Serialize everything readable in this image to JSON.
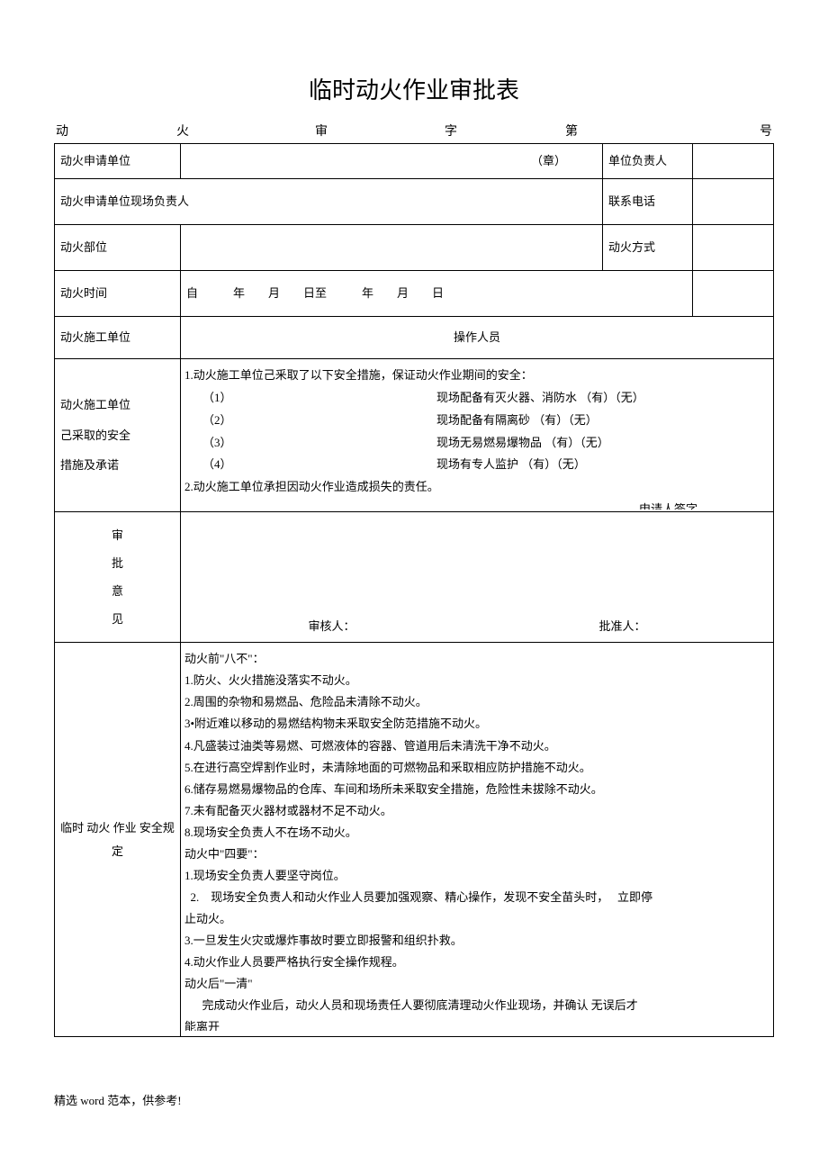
{
  "title": "临时动火作业审批表",
  "header": {
    "c1": "动",
    "c2": "火",
    "c3": "审",
    "c4": "字",
    "c5": "第",
    "c6": "号"
  },
  "rows": {
    "r1_label": "动火申请单位",
    "r1_stamp": "（章）",
    "r1_col3": "单位负责人",
    "r2_label": "动火申请单位现场负责人",
    "r2_col3": "联系电话",
    "r3_label": "动火部位",
    "r3_col3": "动火方式",
    "r4_label": "动火时间",
    "r4_content": "自            年        月        日至            年        月        日",
    "r5_label": "动火施工单位",
    "r5_col3": "操作人员",
    "r6_label_l1": "动火施工单位",
    "r6_label_l2": "己采取的安全",
    "r6_label_l3": "措施及承诺"
  },
  "measures": {
    "head": "1.动火施工单位己釆取了以下安全措施，保证动火作业期间的安全：",
    "m1_l": "（1）",
    "m1_r": "现场配备有灭火器、消防水  （有）（无）",
    "m2_l": "（2）",
    "m2_r": "现场配备有隔离砂  （有）（无）",
    "m3_l": "（3）",
    "m3_r": "现场无易燃易爆物品  （有）（无）",
    "m4_l": "（4）",
    "m4_r": "现场有专人监护 （有）（无）",
    "foot": "2.动火施工单位承担因动火作业造成损失的责任。",
    "sign": "申请人签字"
  },
  "approval": {
    "label_c1": "审",
    "label_c2": "批",
    "label_c3": "意",
    "label_c4": "见",
    "reviewer": "审核人：",
    "approver": "批准人："
  },
  "regs_label": "临时 动火 作业 安全规定",
  "regs": {
    "h1": "动火前\"八不\"：",
    "l1": "1.防火、火火措施没落实不动火。",
    "l2": "2.周围的杂物和易燃品、危险品未清除不动火。",
    "l3": "3•附近难以移动的易燃结构物未釆取安全防范措施不动火。",
    "l4": "4.凡盛装过油类等易燃、可燃液体的容器、管道用后未清洗干净不动火。",
    "l5": "5.在进行高空焊割作业时，未清除地面的可燃物品和釆取相应防护措施不动火。",
    "l6": "6.储存易燃易爆物品的仓库、车间和场所未釆取安全措施，危险性未拔除不动火。",
    "l7": "7.未有配备灭火器材或器材不足不动火。",
    "l8": "8.现场安全负责人不在场不动火。",
    "h2": "动火中\"四要\"：",
    "m1": "1.现场安全负责人要坚守岗位。",
    "m2a": "  2.    现场安全负责人和动火作业人员要加强观察、精心操作，发现不安全苗头时，   立即停",
    "m2b": "止动火。",
    "m3": "3.一旦发生火灾或爆炸事故时要立即报警和组织扑救。",
    "m4": "4.动火作业人员要严格执行安全操作规程。",
    "h3": "动火后\"一清\"",
    "f1": "      完成动火作业后，动火人员和现场责任人要彻底清理动火作业现场，并确认 无误后才",
    "f2": "能离开"
  },
  "footer": "精选 word 范本，供参考!"
}
